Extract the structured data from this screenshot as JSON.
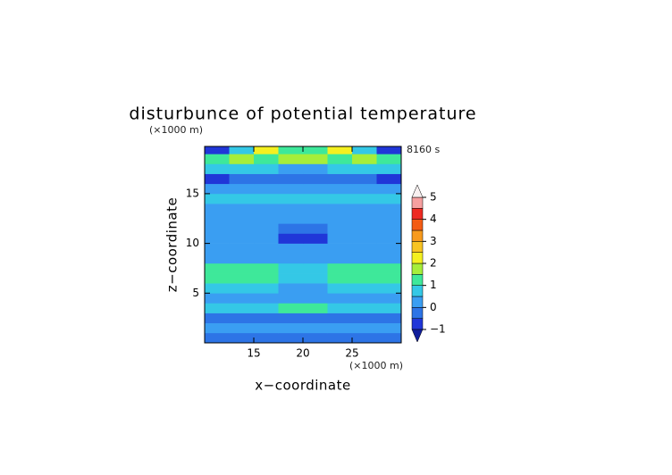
{
  "chart_data": {
    "type": "contour",
    "title": "disturbunce of potential temperature",
    "x_label": "x−coordinate",
    "y_label": "z−coordinate",
    "x_unit": "(×1000 m)",
    "y_unit": "(×1000 m)",
    "time_label": "8160 s",
    "xlim": [
      10,
      30
    ],
    "ylim": [
      0,
      19.75
    ],
    "xticks": [
      15,
      20,
      25
    ],
    "yticks": [
      5,
      10,
      15
    ],
    "x": [
      11.25,
      13.75,
      16.25,
      18.75,
      21.25,
      23.75,
      26.25,
      28.75
    ],
    "y": [
      0.5,
      1.5,
      2.5,
      3.5,
      4.5,
      5.5,
      6.5,
      7.5,
      8.5,
      9.5,
      10.5,
      11.5,
      12.5,
      13.5,
      14.5,
      15.5,
      16.5,
      17.5,
      18.5,
      19.5
    ],
    "z": [
      [
        -0.3,
        -0.3,
        -0.3,
        -0.3,
        -0.3,
        -0.3,
        -0.3,
        -0.3
      ],
      [
        0.3,
        0.3,
        0.3,
        0.2,
        0.2,
        0.3,
        0.3,
        0.3
      ],
      [
        -0.2,
        -0.2,
        -0.3,
        -0.5,
        -0.5,
        -0.3,
        -0.2,
        -0.2
      ],
      [
        0.5,
        0.6,
        0.7,
        1.3,
        1.3,
        0.7,
        0.6,
        0.5
      ],
      [
        0.3,
        0.3,
        0.4,
        0.2,
        0.2,
        0.4,
        0.3,
        0.3
      ],
      [
        0.6,
        0.7,
        0.6,
        0.4,
        0.4,
        0.6,
        0.7,
        0.6
      ],
      [
        1.0,
        1.0,
        1.0,
        0.7,
        0.7,
        1.0,
        1.0,
        1.0
      ],
      [
        1.0,
        1.1,
        1.0,
        0.6,
        0.6,
        1.0,
        1.1,
        1.0
      ],
      [
        0.3,
        0.3,
        0.3,
        0.2,
        0.2,
        0.3,
        0.3,
        0.3
      ],
      [
        0.2,
        0.2,
        0.1,
        0.0,
        0.0,
        0.1,
        0.2,
        0.2
      ],
      [
        0.1,
        0.1,
        0.0,
        -0.6,
        -0.6,
        0.0,
        0.1,
        0.1
      ],
      [
        0.0,
        0.1,
        0.1,
        -0.2,
        -0.2,
        0.1,
        0.1,
        0.0
      ],
      [
        0.2,
        0.2,
        0.3,
        0.1,
        0.1,
        0.3,
        0.2,
        0.2
      ],
      [
        0.3,
        0.4,
        0.3,
        0.2,
        0.2,
        0.3,
        0.4,
        0.3
      ],
      [
        0.8,
        0.6,
        0.9,
        0.5,
        0.5,
        0.9,
        0.6,
        0.8
      ],
      [
        0.2,
        0.3,
        0.2,
        0.1,
        0.1,
        0.2,
        0.3,
        0.2
      ],
      [
        -0.6,
        -0.4,
        -0.5,
        -0.3,
        -0.3,
        -0.5,
        -0.4,
        -0.6
      ],
      [
        0.9,
        0.6,
        0.8,
        0.4,
        0.4,
        0.8,
        0.6,
        0.9
      ],
      [
        1.0,
        1.5,
        1.2,
        1.8,
        1.8,
        1.2,
        1.5,
        1.0
      ],
      [
        -0.6,
        0.9,
        2.2,
        1.2,
        1.2,
        2.2,
        0.9,
        -0.6
      ]
    ],
    "levels": [
      -1,
      -0.5,
      0,
      0.5,
      1,
      1.5,
      2,
      2.5,
      3,
      3.5,
      4,
      4.5,
      5
    ],
    "colors": [
      "#2036d8",
      "#2d74e6",
      "#3a9ef2",
      "#34c8e6",
      "#3ee89a",
      "#a6ee3a",
      "#f4f020",
      "#f8c422",
      "#f89a1c",
      "#f45c14",
      "#ee2a22",
      "#f6a0a0"
    ],
    "under_color": "#101e9c",
    "over_color": "#f8f0f0",
    "colorbar_ticks": [
      {
        "value": -1,
        "label": "−1"
      },
      0,
      1,
      2,
      3,
      4,
      5
    ]
  }
}
